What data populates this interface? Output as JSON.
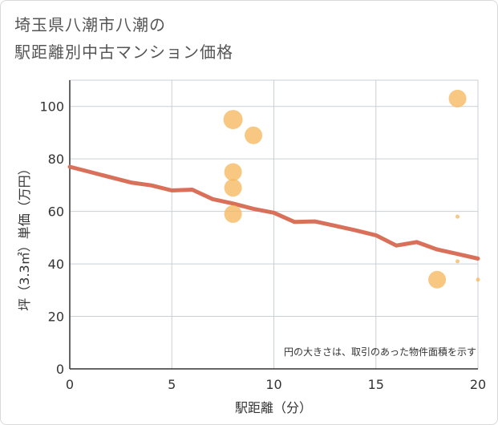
{
  "title": {
    "line1": "埼玉県八潮市八潮の",
    "line2": "駅距離別中古マンション価格"
  },
  "chart_data": {
    "type": "scatter",
    "xlabel": "駅距離（分）",
    "ylabel": "坪（3.3㎡）単価（万円）",
    "xlim": [
      0,
      20
    ],
    "ylim": [
      0,
      110
    ],
    "x_ticks": [
      0,
      5,
      10,
      15,
      20
    ],
    "y_ticks": [
      0,
      20,
      40,
      60,
      80,
      100
    ],
    "grid": true,
    "note": "円の大きさは、取引のあった物件面積を示す",
    "bubble_color": "#f5b55a",
    "line_color": "#d9705a",
    "points": [
      {
        "x": 8,
        "y": 95,
        "size": "large"
      },
      {
        "x": 9,
        "y": 89,
        "size": "medium"
      },
      {
        "x": 8,
        "y": 75,
        "size": "medium"
      },
      {
        "x": 8,
        "y": 69,
        "size": "medium"
      },
      {
        "x": 8,
        "y": 59,
        "size": "medium"
      },
      {
        "x": 18,
        "y": 34,
        "size": "medium"
      },
      {
        "x": 19,
        "y": 103,
        "size": "medium"
      },
      {
        "x": 19,
        "y": 58,
        "size": "tiny"
      },
      {
        "x": 19,
        "y": 41,
        "size": "tiny"
      },
      {
        "x": 20,
        "y": 34,
        "size": "tiny"
      }
    ],
    "trend_line": {
      "x": [
        0,
        1,
        2,
        3,
        4,
        5,
        6,
        7,
        8,
        9,
        10,
        11,
        12,
        13,
        14,
        15,
        16,
        17,
        18,
        19,
        20
      ],
      "y": [
        77,
        75,
        73,
        71,
        69.9,
        68,
        68.3,
        64.7,
        63,
        61,
        59.5,
        56,
        56.2,
        54.5,
        52.8,
        50.9,
        47,
        48.3,
        45.5,
        43.8,
        42
      ]
    }
  }
}
